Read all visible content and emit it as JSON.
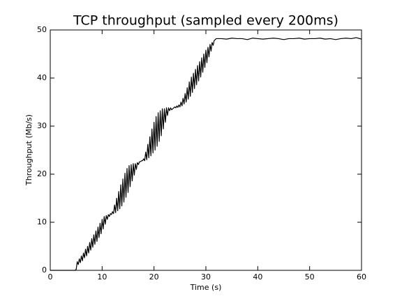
{
  "chart_data": {
    "type": "line",
    "title": "TCP throughput (sampled every 200ms)",
    "xlabel": "Time (s)",
    "ylabel": "Throughput (Mb/s)",
    "x": [
      0,
      4.8,
      5.0,
      5.2,
      5.4,
      5.6,
      5.8,
      6.0,
      6.2,
      6.4,
      6.6,
      6.8,
      7.0,
      7.2,
      7.4,
      7.6,
      7.8,
      8.0,
      8.2,
      8.4,
      8.6,
      8.8,
      9.0,
      9.2,
      9.4,
      9.6,
      9.8,
      10.0,
      10.2,
      10.4,
      10.6,
      10.8,
      11.0,
      11.2,
      11.4,
      11.6,
      11.8,
      12.0,
      12.2,
      12.4,
      12.6,
      12.8,
      13.0,
      13.2,
      13.4,
      13.6,
      13.8,
      14.0,
      14.2,
      14.4,
      14.6,
      14.8,
      15.0,
      15.2,
      15.4,
      15.6,
      15.8,
      16.0,
      16.2,
      16.4,
      16.6,
      16.8,
      17.0,
      17.2,
      17.4,
      17.6,
      17.8,
      18.0,
      18.2,
      18.4,
      18.6,
      18.8,
      19.0,
      19.2,
      19.4,
      19.6,
      19.8,
      20.0,
      20.2,
      20.4,
      20.6,
      20.8,
      21.0,
      21.2,
      21.4,
      21.6,
      21.8,
      22.0,
      22.2,
      22.4,
      22.6,
      22.8,
      23.0,
      23.2,
      23.4,
      23.6,
      23.8,
      24.0,
      24.2,
      24.4,
      24.6,
      24.8,
      25.0,
      25.2,
      25.4,
      25.6,
      25.8,
      26.0,
      26.2,
      26.4,
      26.6,
      26.8,
      27.0,
      27.2,
      27.4,
      27.6,
      27.8,
      28.0,
      28.2,
      28.4,
      28.6,
      28.8,
      29.0,
      29.2,
      29.4,
      29.6,
      29.8,
      30.0,
      30.2,
      30.4,
      30.6,
      30.8,
      31.0,
      31.2,
      31.4,
      31.6,
      31.8,
      32.0,
      33,
      34,
      35,
      36,
      37,
      38,
      39,
      40,
      41,
      42,
      43,
      44,
      45,
      46,
      47,
      48,
      49,
      50,
      51,
      52,
      53,
      54,
      55,
      56,
      57,
      58,
      59,
      60
    ],
    "values": [
      0,
      0,
      0.2,
      1.8,
      1.2,
      2.4,
      1.6,
      3.0,
      2.0,
      3.6,
      2.6,
      4.4,
      3.0,
      5.0,
      3.6,
      5.8,
      4.2,
      6.6,
      4.8,
      7.4,
      5.4,
      8.2,
      6.0,
      9.0,
      6.8,
      9.8,
      7.6,
      10.6,
      8.6,
      11.2,
      9.6,
      11.4,
      10.6,
      11.6,
      11.2,
      11.8,
      11.6,
      12.2,
      11.8,
      13.6,
      12.0,
      15.0,
      12.4,
      16.4,
      12.8,
      17.8,
      13.4,
      19.0,
      14.2,
      20.2,
      15.2,
      21.2,
      16.2,
      21.8,
      17.4,
      22.0,
      18.6,
      22.2,
      19.8,
      22.2,
      21.0,
      22.4,
      22.0,
      22.6,
      22.6,
      22.8,
      22.8,
      23.2,
      22.8,
      24.6,
      23.0,
      26.2,
      23.4,
      27.8,
      23.8,
      29.4,
      24.4,
      30.8,
      25.0,
      32.0,
      25.8,
      32.8,
      26.8,
      33.2,
      28.0,
      33.6,
      29.4,
      33.6,
      30.8,
      33.8,
      32.2,
      33.8,
      33.2,
      33.8,
      33.4,
      33.6,
      33.8,
      34.0,
      33.8,
      34.2,
      33.9,
      34.4,
      34.0,
      35.0,
      34.2,
      35.8,
      34.6,
      36.8,
      35.0,
      38.0,
      35.6,
      39.2,
      36.2,
      40.2,
      37.0,
      41.0,
      37.8,
      41.8,
      38.6,
      42.6,
      39.4,
      43.4,
      40.2,
      44.2,
      41.2,
      45.0,
      42.2,
      45.8,
      43.2,
      46.4,
      44.4,
      47.0,
      45.6,
      47.4,
      46.8,
      47.8,
      48.0,
      48.2,
      48.2,
      48.1,
      48.3,
      48.2,
      48.2,
      48.0,
      48.3,
      48.2,
      48.1,
      48.2,
      48.3,
      48.2,
      48.0,
      48.2,
      48.2,
      48.3,
      48.1,
      48.2,
      48.2,
      48.3,
      48.1,
      48.2,
      48.0,
      48.2,
      48.3,
      48.2,
      48.4,
      48.1
    ],
    "color": "#000000",
    "xlim": [
      0,
      60
    ],
    "xticks": [
      0,
      10,
      20,
      30,
      40,
      50,
      60
    ],
    "ylim": [
      0,
      50
    ],
    "yticks": [
      0,
      10,
      20,
      30,
      40,
      50
    ],
    "grid": false
  }
}
